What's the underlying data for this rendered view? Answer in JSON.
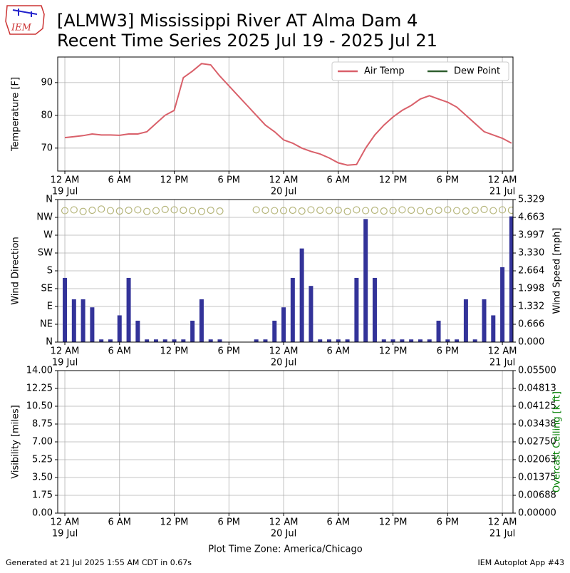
{
  "header": {
    "title_lines": [
      "[ALMW3] Mississippi River  AT Alma Dam 4",
      "Recent Time Series 2025 Jul 19 - 2025 Jul 21"
    ],
    "logo": "IEM"
  },
  "footer": {
    "left": "Generated at 21 Jul 2025 1:55 AM CDT in 0.67s",
    "right": "IEM Autoplot App #43"
  },
  "chart_data": [
    {
      "type": "line",
      "ylabel": "Temperature [F]",
      "grid": true,
      "legend": "upper right",
      "x": [
        "2025-07-19T00:00",
        "2025-07-19T01:00",
        "2025-07-19T02:00",
        "2025-07-19T03:00",
        "2025-07-19T04:00",
        "2025-07-19T05:00",
        "2025-07-19T06:00",
        "2025-07-19T07:00",
        "2025-07-19T08:00",
        "2025-07-19T09:00",
        "2025-07-19T10:00",
        "2025-07-19T11:00",
        "2025-07-19T12:00",
        "2025-07-19T13:00",
        "2025-07-19T14:00",
        "2025-07-19T15:00",
        "2025-07-19T16:00",
        "2025-07-19T17:00",
        "2025-07-19T18:00",
        "2025-07-19T19:00",
        "2025-07-19T20:00",
        "2025-07-19T21:00",
        "2025-07-19T22:00",
        "2025-07-19T23:00",
        "2025-07-20T00:00",
        "2025-07-20T01:00",
        "2025-07-20T02:00",
        "2025-07-20T03:00",
        "2025-07-20T04:00",
        "2025-07-20T05:00",
        "2025-07-20T06:00",
        "2025-07-20T07:00",
        "2025-07-20T08:00",
        "2025-07-20T09:00",
        "2025-07-20T10:00",
        "2025-07-20T11:00",
        "2025-07-20T12:00",
        "2025-07-20T13:00",
        "2025-07-20T14:00",
        "2025-07-20T15:00",
        "2025-07-20T16:00",
        "2025-07-20T17:00",
        "2025-07-20T18:00",
        "2025-07-20T19:00",
        "2025-07-20T20:00",
        "2025-07-20T21:00",
        "2025-07-20T22:00",
        "2025-07-20T23:00",
        "2025-07-21T00:00",
        "2025-07-21T01:00"
      ],
      "xlim": [
        "2025-07-18T23:13",
        "2025-07-21T01:10"
      ],
      "xticks": [
        {
          "value": "2025-07-19T00:00",
          "label": [
            "12 AM",
            "19 Jul"
          ]
        },
        {
          "value": "2025-07-19T06:00",
          "label": [
            "6 AM"
          ]
        },
        {
          "value": "2025-07-19T12:00",
          "label": [
            "12 PM"
          ]
        },
        {
          "value": "2025-07-19T18:00",
          "label": [
            "6 PM"
          ]
        },
        {
          "value": "2025-07-20T00:00",
          "label": [
            "12 AM",
            "20 Jul"
          ]
        },
        {
          "value": "2025-07-20T06:00",
          "label": [
            "6 AM"
          ]
        },
        {
          "value": "2025-07-20T12:00",
          "label": [
            "12 PM"
          ]
        },
        {
          "value": "2025-07-20T18:00",
          "label": [
            "6 PM"
          ]
        },
        {
          "value": "2025-07-21T00:00",
          "label": [
            "12 AM",
            "21 Jul"
          ]
        }
      ],
      "ylim": [
        63,
        97.8
      ],
      "yticks": [
        70,
        80,
        90
      ],
      "series": [
        {
          "name": "Air Temp",
          "color": "#d9606a",
          "values": [
            73.2,
            73.5,
            73.8,
            74.3,
            74,
            74,
            73.9,
            74.3,
            74.3,
            75,
            77.5,
            80,
            81.5,
            91.5,
            93.5,
            95.8,
            95.4,
            92,
            89,
            86,
            83,
            80,
            77,
            75,
            72.5,
            71.5,
            70,
            69,
            68.2,
            67,
            65.5,
            64.8,
            65,
            70,
            74,
            77,
            79.5,
            81.5,
            83,
            85,
            86,
            85,
            84,
            82.5,
            80,
            77.5,
            75,
            74,
            73,
            71.5
          ]
        },
        {
          "name": "Dew Point",
          "color": "#2e5e2e",
          "values": [
            null,
            null,
            null,
            null,
            null,
            null,
            null,
            null,
            null,
            null,
            null,
            null,
            null,
            null,
            null,
            null,
            null,
            null,
            null,
            null,
            null,
            null,
            null,
            null,
            null,
            null,
            null,
            null,
            null,
            null,
            null,
            null,
            null,
            null,
            null,
            null,
            null,
            null,
            null,
            null,
            null,
            null,
            null,
            null,
            null,
            null,
            null,
            null,
            null,
            null
          ]
        }
      ]
    },
    {
      "type": "bar",
      "ylabel": "Wind Direction",
      "y2label": "Wind Speed [mph]",
      "grid": true,
      "x": [
        "2025-07-19T00:00",
        "2025-07-19T01:00",
        "2025-07-19T02:00",
        "2025-07-19T03:00",
        "2025-07-19T04:00",
        "2025-07-19T05:00",
        "2025-07-19T06:00",
        "2025-07-19T07:00",
        "2025-07-19T08:00",
        "2025-07-19T09:00",
        "2025-07-19T10:00",
        "2025-07-19T11:00",
        "2025-07-19T12:00",
        "2025-07-19T13:00",
        "2025-07-19T14:00",
        "2025-07-19T15:00",
        "2025-07-19T16:00",
        "2025-07-19T17:00",
        "2025-07-19T18:00",
        "2025-07-19T19:00",
        "2025-07-19T20:00",
        "2025-07-19T21:00",
        "2025-07-19T22:00",
        "2025-07-19T23:00",
        "2025-07-20T00:00",
        "2025-07-20T01:00",
        "2025-07-20T02:00",
        "2025-07-20T03:00",
        "2025-07-20T04:00",
        "2025-07-20T05:00",
        "2025-07-20T06:00",
        "2025-07-20T07:00",
        "2025-07-20T08:00",
        "2025-07-20T09:00",
        "2025-07-20T10:00",
        "2025-07-20T11:00",
        "2025-07-20T12:00",
        "2025-07-20T13:00",
        "2025-07-20T14:00",
        "2025-07-20T15:00",
        "2025-07-20T16:00",
        "2025-07-20T17:00",
        "2025-07-20T18:00",
        "2025-07-20T19:00",
        "2025-07-20T20:00",
        "2025-07-20T21:00",
        "2025-07-20T22:00",
        "2025-07-20T23:00",
        "2025-07-21T00:00",
        "2025-07-21T01:00"
      ],
      "xlim": [
        "2025-07-18T23:13",
        "2025-07-21T01:10"
      ],
      "xticks": [
        {
          "value": "2025-07-19T00:00",
          "label": [
            "12 AM",
            "19 Jul"
          ]
        },
        {
          "value": "2025-07-19T06:00",
          "label": [
            "6 AM"
          ]
        },
        {
          "value": "2025-07-19T12:00",
          "label": [
            "12 PM"
          ]
        },
        {
          "value": "2025-07-19T18:00",
          "label": [
            "6 PM"
          ]
        },
        {
          "value": "2025-07-20T00:00",
          "label": [
            "12 AM",
            "20 Jul"
          ]
        },
        {
          "value": "2025-07-20T06:00",
          "label": [
            "6 AM"
          ]
        },
        {
          "value": "2025-07-20T12:00",
          "label": [
            "12 PM"
          ]
        },
        {
          "value": "2025-07-20T18:00",
          "label": [
            "6 PM"
          ]
        },
        {
          "value": "2025-07-21T00:00",
          "label": [
            "12 AM",
            "21 Jul"
          ]
        }
      ],
      "ylim": [
        0,
        360
      ],
      "yticks": [
        {
          "value": 0,
          "label": "N"
        },
        {
          "value": 45,
          "label": "NE"
        },
        {
          "value": 90,
          "label": "E"
        },
        {
          "value": 135,
          "label": "SE"
        },
        {
          "value": 180,
          "label": "S"
        },
        {
          "value": 225,
          "label": "SW"
        },
        {
          "value": 270,
          "label": "W"
        },
        {
          "value": 315,
          "label": "NW"
        },
        {
          "value": 360,
          "label": "N"
        }
      ],
      "y2lim": [
        0,
        5.329
      ],
      "y2ticks": [
        {
          "value": 0,
          "label": "0.000"
        },
        {
          "value": 0.666,
          "label": "0.666"
        },
        {
          "value": 1.332,
          "label": "1.332"
        },
        {
          "value": 1.998,
          "label": "1.998"
        },
        {
          "value": 2.664,
          "label": "2.664"
        },
        {
          "value": 3.33,
          "label": "3.330"
        },
        {
          "value": 3.997,
          "label": "3.997"
        },
        {
          "value": 4.663,
          "label": "4.663"
        },
        {
          "value": 5.329,
          "label": "5.329"
        }
      ],
      "series": [
        {
          "mark": "scatter",
          "color": "#b5b57a",
          "values": [
            332,
            334,
            330,
            333,
            336,
            332,
            331,
            333,
            334,
            330,
            332,
            335,
            334,
            333,
            332,
            330,
            333,
            331,
            null,
            null,
            null,
            334,
            333,
            332,
            332,
            333,
            331,
            334,
            333,
            332,
            333,
            330,
            334,
            332,
            333,
            331,
            332,
            334,
            333,
            332,
            330,
            333,
            334,
            332,
            331,
            333,
            335,
            332,
            334,
            333
          ]
        },
        {
          "mark": "bar",
          "axis": "y2",
          "color": "#333399",
          "values": [
            2.4,
            1.6,
            1.6,
            1.3,
            0.1,
            0.1,
            1.0,
            2.4,
            0.8,
            0.1,
            0.1,
            0.1,
            0.1,
            0.1,
            0.8,
            1.6,
            0.1,
            0.1,
            0,
            0,
            0,
            0.1,
            0.1,
            0.8,
            1.3,
            2.4,
            3.5,
            2.1,
            0.1,
            0.1,
            0.1,
            0.1,
            2.4,
            4.6,
            2.4,
            0.1,
            0.1,
            0.1,
            0.1,
            0.1,
            0.1,
            0.8,
            0.1,
            0.1,
            1.6,
            0.1,
            1.6,
            1.0,
            2.8,
            4.7
          ]
        }
      ]
    },
    {
      "type": "line",
      "ylabel": "Visibility [miles]",
      "y2label": "Overcast Ceiling [k ft]",
      "y2label_color": "#008000",
      "xlabel": "Plot Time Zone: America/Chicago",
      "grid": true,
      "xlim": [
        "2025-07-18T23:13",
        "2025-07-21T01:10"
      ],
      "xticks": [
        {
          "value": "2025-07-19T00:00",
          "label": [
            "12 AM",
            "19 Jul"
          ]
        },
        {
          "value": "2025-07-19T06:00",
          "label": [
            "6 AM"
          ]
        },
        {
          "value": "2025-07-19T12:00",
          "label": [
            "12 PM"
          ]
        },
        {
          "value": "2025-07-19T18:00",
          "label": [
            "6 PM"
          ]
        },
        {
          "value": "2025-07-20T00:00",
          "label": [
            "12 AM",
            "20 Jul"
          ]
        },
        {
          "value": "2025-07-20T06:00",
          "label": [
            "6 AM"
          ]
        },
        {
          "value": "2025-07-20T12:00",
          "label": [
            "12 PM"
          ]
        },
        {
          "value": "2025-07-20T18:00",
          "label": [
            "6 PM"
          ]
        },
        {
          "value": "2025-07-21T00:00",
          "label": [
            "12 AM",
            "21 Jul"
          ]
        }
      ],
      "ylim": [
        0,
        14
      ],
      "yticks": [
        {
          "value": 0,
          "label": "0.00"
        },
        {
          "value": 1.75,
          "label": "1.75"
        },
        {
          "value": 3.5,
          "label": "3.50"
        },
        {
          "value": 5.25,
          "label": "5.25"
        },
        {
          "value": 7,
          "label": "7.00"
        },
        {
          "value": 8.75,
          "label": "8.75"
        },
        {
          "value": 10.5,
          "label": "10.50"
        },
        {
          "value": 12.25,
          "label": "12.25"
        },
        {
          "value": 14,
          "label": "14.00"
        }
      ],
      "y2lim": [
        0,
        0.055
      ],
      "y2ticks": [
        {
          "value": 0,
          "label": "0.00000"
        },
        {
          "value": 0.006875,
          "label": "0.00688"
        },
        {
          "value": 0.01375,
          "label": "0.01375"
        },
        {
          "value": 0.020625,
          "label": "0.02063"
        },
        {
          "value": 0.0275,
          "label": "0.02750"
        },
        {
          "value": 0.034375,
          "label": "0.03438"
        },
        {
          "value": 0.04125,
          "label": "0.04125"
        },
        {
          "value": 0.048125,
          "label": "0.04813"
        },
        {
          "value": 0.055,
          "label": "0.05500"
        }
      ]
    }
  ]
}
